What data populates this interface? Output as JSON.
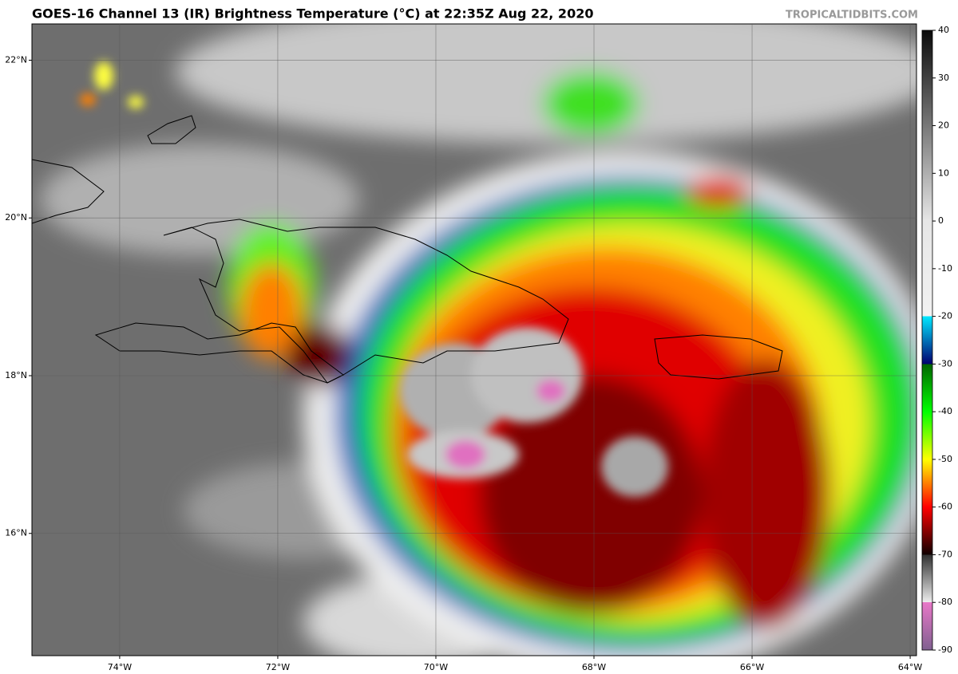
{
  "header": {
    "title": "GOES-16 Channel 13 (IR) Brightness Temperature (°C) at 22:35Z Aug 22, 2020",
    "source": "TROPICALTIDBITS.COM"
  },
  "map": {
    "lon_range": [
      -75.11,
      -63.92
    ],
    "lat_range": [
      14.45,
      22.46
    ],
    "grid": true,
    "lat_ticks": [
      {
        "value": 22,
        "label": "22°N"
      },
      {
        "value": 20,
        "label": "20°N"
      },
      {
        "value": 18,
        "label": "18°N"
      },
      {
        "value": 16,
        "label": "16°N"
      }
    ],
    "lon_ticks": [
      {
        "value": -74,
        "label": "74°W"
      },
      {
        "value": -72,
        "label": "72°W"
      },
      {
        "value": -70,
        "label": "70°W"
      },
      {
        "value": -68,
        "label": "68°W"
      },
      {
        "value": -66,
        "label": "66°W"
      },
      {
        "value": -64,
        "label": "64°W"
      }
    ]
  },
  "colorbar": {
    "range": [
      -90,
      40
    ],
    "ticks": [
      40,
      30,
      20,
      10,
      0,
      -10,
      -20,
      -30,
      -40,
      -50,
      -60,
      -70,
      -80,
      -90
    ],
    "stops": [
      {
        "value": 40,
        "color": "#0a0a0a"
      },
      {
        "value": 0,
        "color": "#e6e6e6"
      },
      {
        "value": -20,
        "color": "#f2f2f2"
      },
      {
        "value": -20,
        "color": "#00e8ff"
      },
      {
        "value": -30,
        "color": "#000070"
      },
      {
        "value": -30,
        "color": "#006400"
      },
      {
        "value": -40,
        "color": "#00ff00"
      },
      {
        "value": -50,
        "color": "#ffff00"
      },
      {
        "value": -60,
        "color": "#ff0000"
      },
      {
        "value": -70,
        "color": "#100000"
      },
      {
        "value": -70,
        "color": "#303030"
      },
      {
        "value": -80,
        "color": "#eeeeee"
      },
      {
        "value": -80,
        "color": "#e878c8"
      },
      {
        "value": -90,
        "color": "#806090"
      }
    ]
  }
}
